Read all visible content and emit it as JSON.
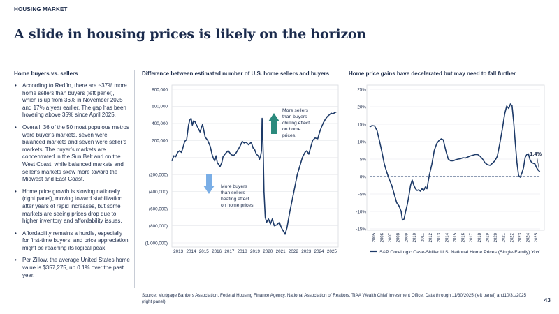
{
  "header": {
    "kicker": "HOUSING MARKET",
    "title": "A slide in housing prices is likely on the horizon"
  },
  "left_panel": {
    "heading": "Home buyers vs. sellers",
    "bullets": [
      "According to Redfin, there are ~37% more home sellers than buyers (left panel), which is up from 36% in November 2025 and 17% a year earlier. The gap has been hovering above 35% since April 2025.",
      "Overall, 36 of the 50 most populous metros were buyer’s markets, seven were balanced markets and seven were seller’s markets. The buyer’s markets are concentrated in the Sun Belt and on the West Coast, while balanced markets and seller’s markets skew more toward the Midwest and East Coast.",
      "Home price growth is slowing nationally (right panel), moving toward stabilization after years of rapid increases, but some markets are seeing prices drop due to higher inventory and affordability issues.",
      "Affordability remains a hurdle, especially for first-time buyers, and price appreciation might be reaching its logical peak.",
      "Per Zillow, the average United States home value is $357,275, up 0.1% over the past year."
    ]
  },
  "colors": {
    "line": "#1d3a68",
    "arrow_up": "#2b8a7d",
    "arrow_down": "#7aaee6",
    "zero_line": "#1d3a68",
    "grid": "#e4e6ea"
  },
  "chart_data": [
    {
      "type": "line",
      "title": "Difference between estimated number of U.S. home sellers and buyers",
      "xlabel": "",
      "ylabel": "",
      "y_ticks": [
        "800,000",
        "600,000",
        "400,000",
        "200,000",
        "-",
        "(200,000)",
        "(400,000)",
        "(600,000)",
        "(800,000)",
        "(1,000,000)"
      ],
      "x_ticks": [
        "2013",
        "2014",
        "2015",
        "2016",
        "2017",
        "2018",
        "2019",
        "2020",
        "2021",
        "2022",
        "2023",
        "2024",
        "2025"
      ],
      "xlim": [
        2013.0,
        2026.0
      ],
      "ylim": [
        -1000000,
        800000
      ],
      "annotations": [
        {
          "text_lines": [
            "More sellers",
            "than buyers -",
            "chilling effect",
            "on home",
            "prices."
          ],
          "arrow": "up"
        },
        {
          "text_lines": [
            "More buyers",
            "than sellers -",
            "heating effect",
            "on home prices."
          ],
          "arrow": "down"
        }
      ],
      "series": [
        {
          "x": [
            2013.0,
            2013.15,
            2013.3,
            2013.45,
            2013.6,
            2013.75,
            2013.85,
            2014.0,
            2014.15,
            2014.3,
            2014.4,
            2014.5,
            2014.6,
            2014.7,
            2014.8,
            2015.0,
            2015.2,
            2015.4,
            2015.6,
            2015.8,
            2016.0,
            2016.15,
            2016.25,
            2016.35,
            2016.45,
            2016.55,
            2016.65,
            2016.75,
            2016.9,
            2017.0,
            2017.2,
            2017.4,
            2017.6,
            2017.8,
            2018.0,
            2018.2,
            2018.35,
            2018.5,
            2018.65,
            2018.8,
            2019.0,
            2019.2,
            2019.35,
            2019.45,
            2019.6,
            2019.75,
            2019.85,
            2019.95,
            2020.0,
            2020.05,
            2020.1,
            2020.15,
            2020.2,
            2020.3,
            2020.4,
            2020.55,
            2020.7,
            2020.85,
            2021.0,
            2021.2,
            2021.4,
            2021.55,
            2021.7,
            2021.85,
            2022.0,
            2022.2,
            2022.4,
            2022.6,
            2022.8,
            2023.0,
            2023.2,
            2023.4,
            2023.55,
            2023.7,
            2023.85,
            2024.0,
            2024.2,
            2024.4,
            2024.55,
            2024.7,
            2024.85,
            2025.0,
            2025.15,
            2025.3,
            2025.45,
            2025.6,
            2025.75,
            2025.85
          ],
          "y": [
            -40000,
            20000,
            10000,
            60000,
            80000,
            60000,
            110000,
            190000,
            210000,
            380000,
            440000,
            460000,
            380000,
            430000,
            420000,
            360000,
            300000,
            390000,
            240000,
            200000,
            130000,
            30000,
            -10000,
            -40000,
            20000,
            -60000,
            -80000,
            -110000,
            -60000,
            10000,
            50000,
            80000,
            40000,
            20000,
            50000,
            100000,
            140000,
            190000,
            170000,
            180000,
            150000,
            180000,
            110000,
            100000,
            40000,
            20000,
            -20000,
            30000,
            80000,
            460000,
            250000,
            -20000,
            -400000,
            -700000,
            -760000,
            -720000,
            -780000,
            -720000,
            -800000,
            -790000,
            -760000,
            -820000,
            -860000,
            -900000,
            -820000,
            -650000,
            -500000,
            -350000,
            -200000,
            -100000,
            0,
            60000,
            80000,
            40000,
            120000,
            200000,
            230000,
            220000,
            300000,
            360000,
            410000,
            450000,
            480000,
            500000,
            520000,
            510000,
            530000,
            530000
          ]
        }
      ]
    },
    {
      "type": "line",
      "title": "Home price gains have decelerated but may need to fall further",
      "xlabel": "",
      "ylabel": "",
      "y_ticks": [
        "25%",
        "20%",
        "15%",
        "10%",
        "5%",
        "0%",
        "-5%",
        "-10%",
        "-15%"
      ],
      "x_ticks": [
        "2005",
        "2006",
        "2007",
        "2008",
        "2009",
        "2010",
        "2011",
        "2012",
        "2013",
        "2014",
        "2015",
        "2016",
        "2017",
        "2018",
        "2019",
        "2020",
        "2021",
        "2022",
        "2023",
        "2024",
        "2025"
      ],
      "xlim": [
        2005.0,
        2025.83
      ],
      "ylim": [
        -15,
        25
      ],
      "legend": "S&P CoreLogic Case-Shiller U.S. National Home Prices (Single-Family) YoY",
      "legend_position": "bottom",
      "end_label": "1.4%",
      "series": [
        {
          "name": "S&P CoreLogic Case-Shiller U.S. National Home Prices (Single-Family) YoY",
          "x": [
            2005.0,
            2005.3,
            2005.6,
            2005.9,
            2006.2,
            2006.5,
            2006.8,
            2007.1,
            2007.4,
            2007.7,
            2008.0,
            2008.3,
            2008.6,
            2008.85,
            2009.0,
            2009.2,
            2009.4,
            2009.6,
            2009.8,
            2010.0,
            2010.2,
            2010.4,
            2010.6,
            2010.8,
            2011.0,
            2011.2,
            2011.4,
            2011.6,
            2011.8,
            2012.0,
            2012.3,
            2012.6,
            2012.9,
            2013.2,
            2013.5,
            2013.75,
            2014.0,
            2014.3,
            2014.6,
            2014.9,
            2015.2,
            2015.5,
            2015.8,
            2016.1,
            2016.4,
            2016.7,
            2017.0,
            2017.3,
            2017.6,
            2017.9,
            2018.2,
            2018.5,
            2018.8,
            2019.1,
            2019.4,
            2019.7,
            2020.0,
            2020.3,
            2020.6,
            2020.9,
            2021.2,
            2021.5,
            2021.75,
            2022.0,
            2022.2,
            2022.4,
            2022.6,
            2022.8,
            2023.0,
            2023.2,
            2023.4,
            2023.6,
            2023.8,
            2024.0,
            2024.2,
            2024.4,
            2024.6,
            2024.8,
            2025.0,
            2025.2,
            2025.4,
            2025.6,
            2025.8
          ],
          "y": [
            14.2,
            14.6,
            14.5,
            13.2,
            10.2,
            7.0,
            3.5,
            1.2,
            -0.8,
            -2.5,
            -5.0,
            -7.5,
            -8.5,
            -10.0,
            -12.5,
            -12.2,
            -10.0,
            -8.0,
            -5.5,
            -2.5,
            -1.0,
            -2.5,
            -3.5,
            -4.0,
            -3.8,
            -4.2,
            -3.5,
            -4.0,
            -3.0,
            -3.5,
            0.5,
            3.5,
            7.5,
            9.5,
            10.4,
            10.8,
            10.5,
            7.5,
            5.0,
            4.5,
            4.5,
            4.8,
            5.0,
            5.1,
            5.4,
            5.3,
            5.6,
            5.9,
            6.1,
            6.3,
            6.3,
            5.8,
            5.0,
            3.9,
            3.4,
            3.2,
            3.8,
            4.5,
            5.8,
            9.5,
            13.5,
            18.0,
            20.2,
            19.5,
            20.8,
            20.3,
            15.5,
            9.5,
            4.0,
            0.3,
            -0.2,
            1.0,
            2.5,
            5.5,
            6.3,
            6.5,
            4.8,
            4.0,
            3.8,
            3.6,
            2.5,
            1.8,
            1.4
          ]
        }
      ]
    }
  ],
  "footer": {
    "source": "Source: Mortgage Bankers Association, Federal Housing Finance Agency, National Association of Realtors, TIAA Wealth Chief Investment Office. Data through 11/30/2025 (left panel) and10/31/2025 (right panel).",
    "page_number": "43"
  }
}
